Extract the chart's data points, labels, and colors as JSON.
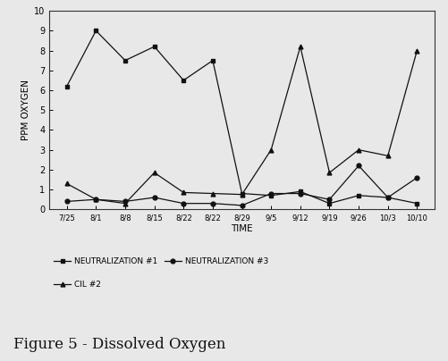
{
  "x_labels": [
    "7/25",
    "8/1",
    "8/8",
    "8/15",
    "8/22",
    "8/22",
    "8/29",
    "9/5",
    "9/12",
    "9/19",
    "9/26",
    "10/3",
    "10/10"
  ],
  "neutralization1": [
    6.2,
    9.0,
    7.5,
    8.2,
    6.5,
    7.5,
    0.8,
    0.7,
    0.9,
    0.3,
    0.7,
    0.6,
    0.3
  ],
  "neutralization3": [
    0.4,
    0.5,
    0.4,
    0.6,
    0.3,
    0.3,
    0.2,
    0.8,
    0.8,
    0.5,
    2.2,
    0.6,
    1.6
  ],
  "cil2": [
    1.3,
    0.5,
    0.3,
    1.85,
    0.85,
    0.8,
    0.75,
    3.0,
    8.2,
    1.85,
    3.0,
    2.7,
    8.0
  ],
  "ylim": [
    0,
    10
  ],
  "yticks": [
    0,
    1,
    2,
    3,
    4,
    5,
    6,
    7,
    8,
    9,
    10
  ],
  "ylabel": "PPM OXYGEN",
  "xlabel": "TIME",
  "title": "Figure 5 - Dissolved Oxygen",
  "bg_color": "#e8e8e8",
  "line_color": "#111111",
  "legend_neut1": "NEUTRALIZATION #1",
  "legend_neut3": "NEUTRALIZATION #3",
  "legend_cil2": "CIL #2"
}
